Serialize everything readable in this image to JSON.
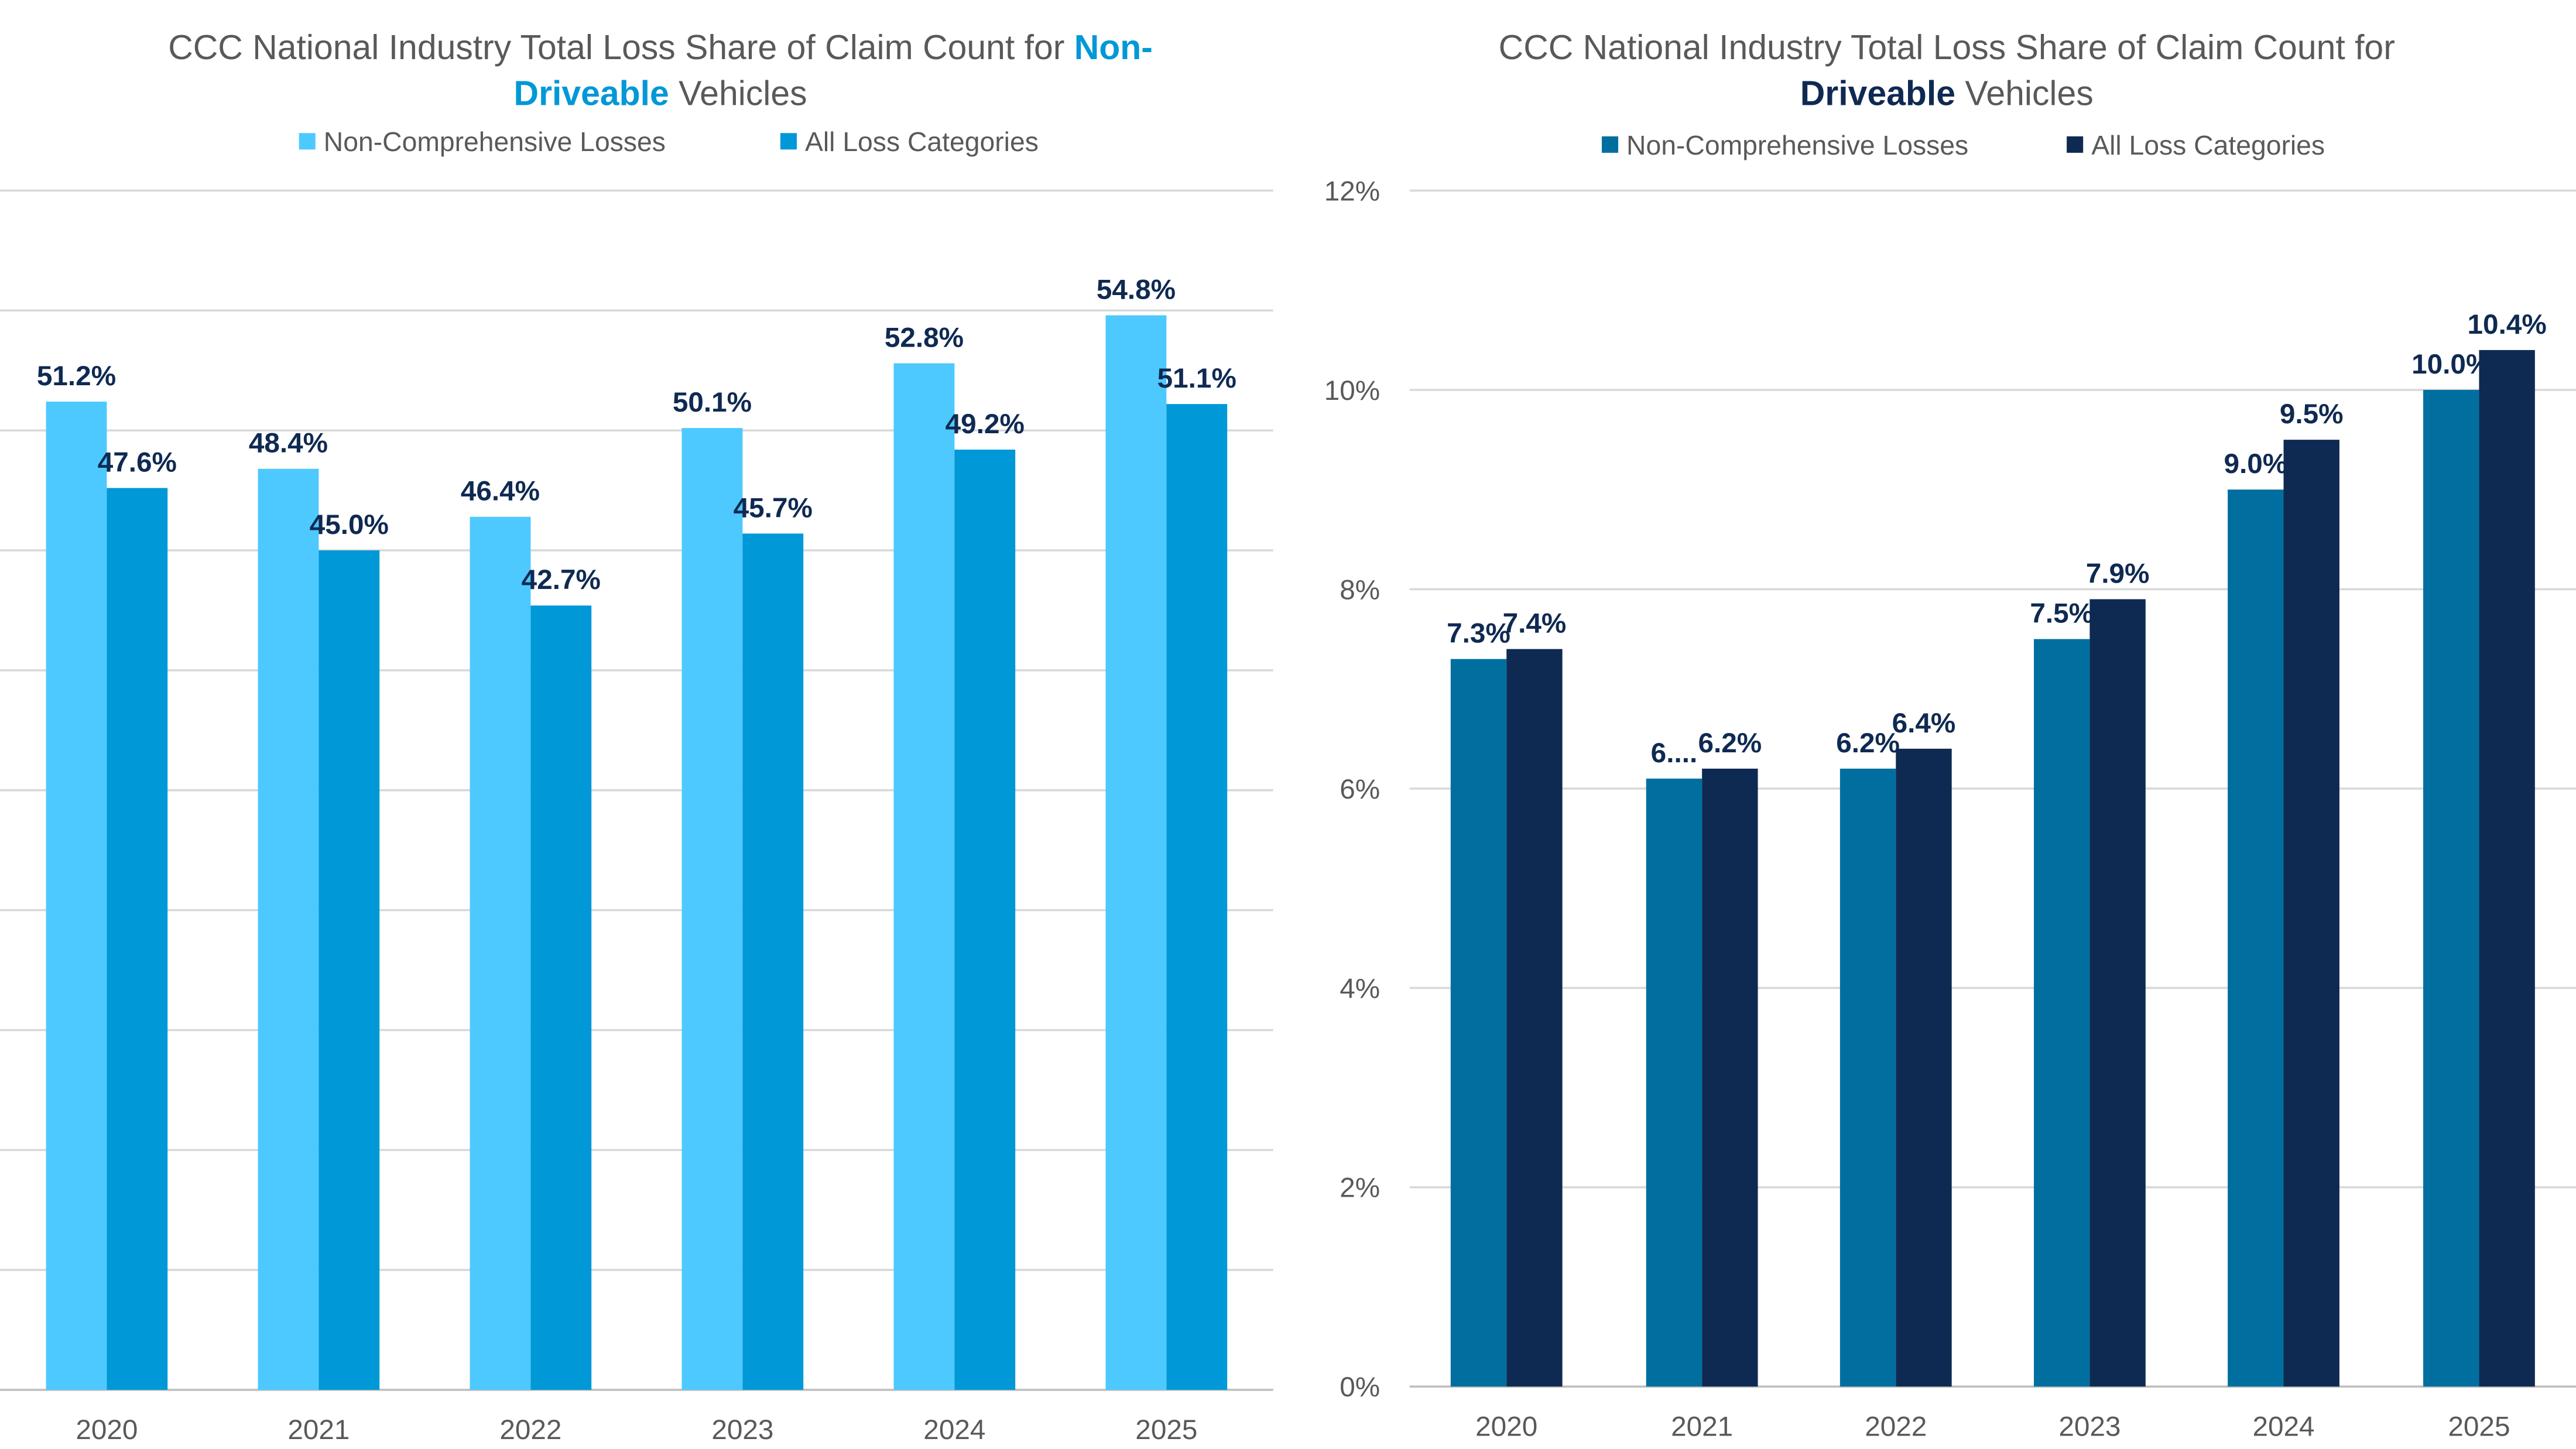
{
  "chart_data": [
    {
      "type": "bar",
      "title_parts": [
        "CCC National Industry Total Loss Share of Claim Count for ",
        "Non-",
        "Driveable",
        " Vehicles"
      ],
      "title_highlight_color": "#0098D6",
      "categories": [
        "2020",
        "2021",
        "2022",
        "2023",
        "2024",
        "2025"
      ],
      "series": [
        {
          "name": "Non-Comprehensive Losses",
          "color": "#4DC9FF",
          "values": [
            51.2,
            48.4,
            46.4,
            50.1,
            52.8,
            54.8
          ],
          "labels": [
            "51.2%",
            "48.4%",
            "46.4%",
            "50.1%",
            "52.8%",
            "54.8%"
          ]
        },
        {
          "name": "All Loss Categories",
          "color": "#0098D6",
          "values": [
            47.6,
            45.0,
            42.7,
            45.7,
            49.2,
            51.1
          ],
          "labels": [
            "47.6%",
            "45.0%",
            "42.7%",
            "45.7%",
            "49.2%",
            "51.1%"
          ]
        }
      ],
      "ylim": [
        10,
        60
      ],
      "y_tick_step": 5,
      "y_tick_labels_visible": false,
      "grid": true,
      "legend_position": "top"
    },
    {
      "type": "bar",
      "title_parts": [
        "CCC National Industry Total Loss Share of Claim Count for",
        "Driveable",
        " Vehicles"
      ],
      "title_highlight_color": "#0F2A52",
      "categories": [
        "2020",
        "2021",
        "2022",
        "2023",
        "2024",
        "2025"
      ],
      "series": [
        {
          "name": "Non-Comprehensive Losses",
          "color": "#006FA0",
          "values": [
            7.3,
            6.1,
            6.2,
            7.5,
            9.0,
            10.0
          ],
          "labels": [
            "7.3%",
            "6....",
            "6.2%",
            "7.5%",
            "9.0%",
            "10.0%"
          ]
        },
        {
          "name": "All Loss Categories",
          "color": "#0F2A52",
          "values": [
            7.4,
            6.2,
            6.4,
            7.9,
            9.5,
            10.4
          ],
          "labels": [
            "7.4%",
            "6.2%",
            "6.4%",
            "7.9%",
            "9.5%",
            "10.4%"
          ]
        }
      ],
      "ylim": [
        0,
        12
      ],
      "y_ticks": [
        "0%",
        "2%",
        "4%",
        "6%",
        "8%",
        "10%",
        "12%"
      ],
      "grid": true,
      "legend_position": "top"
    }
  ]
}
